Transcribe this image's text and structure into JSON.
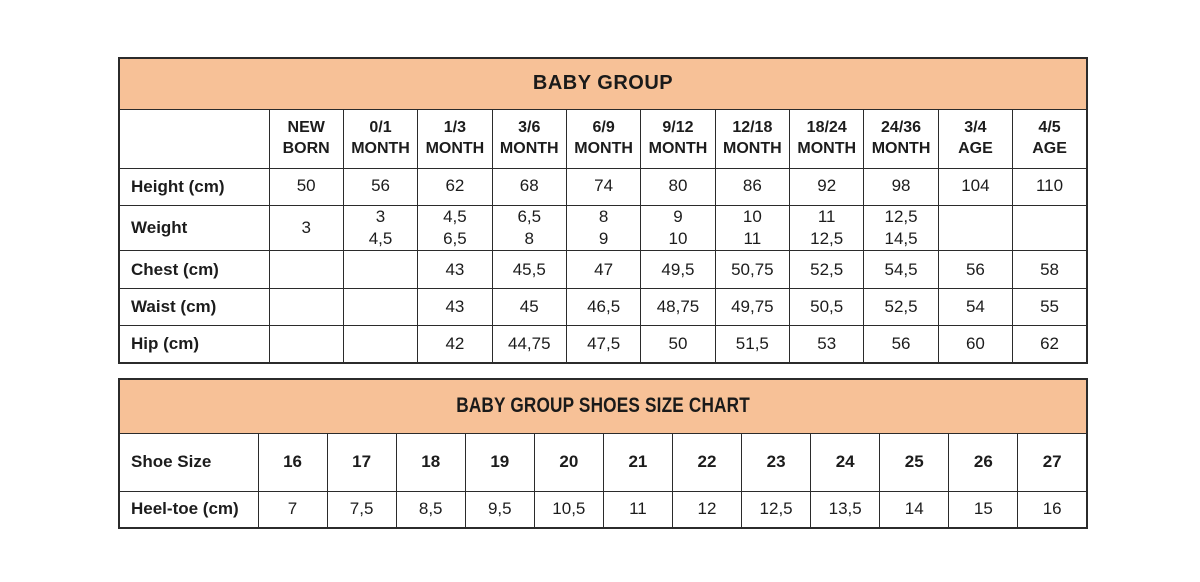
{
  "chart_data": [
    {
      "type": "table",
      "title": "BABY GROUP",
      "columns": [
        "NEW\nBORN",
        "0/1\nMONTH",
        "1/3\nMONTH",
        "3/6\nMONTH",
        "6/9\nMONTH",
        "9/12\nMONTH",
        "12/18\nMONTH",
        "18/24\nMONTH",
        "24/36\nMONTH",
        "3/4\nAGE",
        "4/5\nAGE"
      ],
      "rows": [
        {
          "label": "Height (cm)",
          "values": [
            "50",
            "56",
            "62",
            "68",
            "74",
            "80",
            "86",
            "92",
            "98",
            "104",
            "110"
          ]
        },
        {
          "label": "Weight",
          "values": [
            "3",
            "3\n4,5",
            "4,5\n6,5",
            "6,5\n8",
            "8\n9",
            "9\n10",
            "10\n11",
            "11\n12,5",
            "12,5\n14,5",
            "",
            ""
          ]
        },
        {
          "label": "Chest (cm)",
          "values": [
            "",
            "",
            "43",
            "45,5",
            "47",
            "49,5",
            "50,75",
            "52,5",
            "54,5",
            "56",
            "58"
          ]
        },
        {
          "label": "Waist (cm)",
          "values": [
            "",
            "",
            "43",
            "45",
            "46,5",
            "48,75",
            "49,75",
            "50,5",
            "52,5",
            "54",
            "55"
          ]
        },
        {
          "label": "Hip (cm)",
          "values": [
            "",
            "",
            "42",
            "44,75",
            "47,5",
            "50",
            "51,5",
            "53",
            "56",
            "60",
            "62"
          ]
        }
      ]
    },
    {
      "type": "table",
      "title": "BABY GROUP SHOES SIZE CHART",
      "rows": [
        {
          "label": "Shoe Size",
          "values": [
            "16",
            "17",
            "18",
            "19",
            "20",
            "21",
            "22",
            "23",
            "24",
            "25",
            "26",
            "27"
          ]
        },
        {
          "label": "Heel-toe (cm)",
          "values": [
            "7",
            "7,5",
            "8,5",
            "9,5",
            "10,5",
            "11",
            "12",
            "12,5",
            "13,5",
            "14",
            "15",
            "16"
          ]
        }
      ]
    }
  ],
  "colors": {
    "header_bg": "#F7C197",
    "border": "#2b2b2b",
    "text": "#1c1c1c"
  }
}
